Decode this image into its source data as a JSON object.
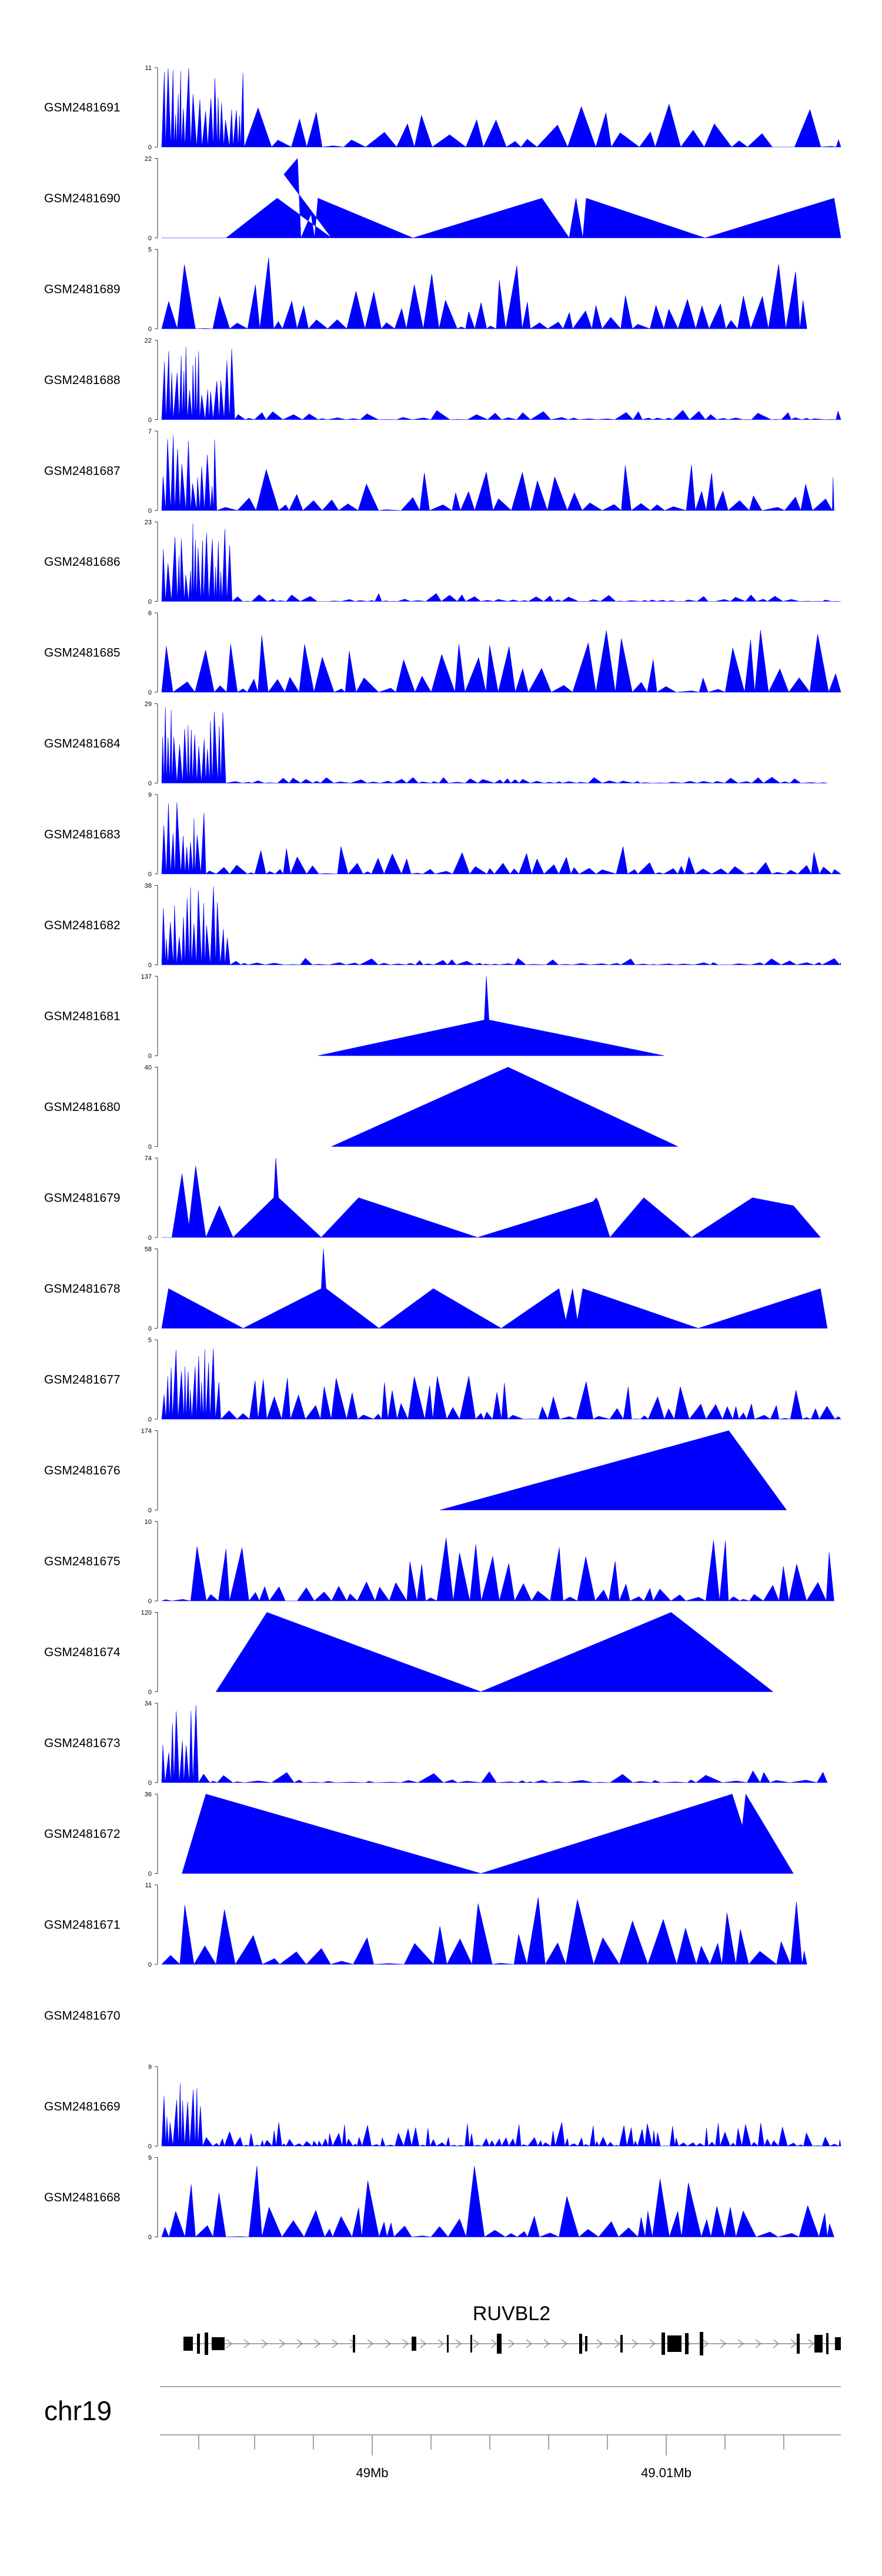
{
  "chart_data": {
    "type": "area",
    "title": "",
    "color": "#0000ff",
    "chromosome": "chr19",
    "gene": {
      "name": "RUVBL2"
    },
    "positions": [
      "49Mb",
      "49.01Mb"
    ],
    "tracks": [
      {
        "name": "GSM2481691",
        "ymax": 11,
        "shape": "noisy",
        "seed": 11,
        "hot_end": 0.12,
        "hot": 1.0,
        "base": 0.22,
        "spike": 0.55,
        "minw": 0.02,
        "maxw": 0.05,
        "xstart": 0,
        "xend": 1
      },
      {
        "name": "GSM2481690",
        "ymax": 22,
        "shape": "poly",
        "pts": [
          [
            0,
            0
          ],
          [
            0.05,
            0
          ],
          [
            0.095,
            0
          ],
          [
            0.17,
            0.5
          ],
          [
            0.25,
            0
          ],
          [
            0.18,
            0.8
          ],
          [
            0.2,
            1.0
          ],
          [
            0.205,
            0
          ],
          [
            0.22,
            0.3
          ],
          [
            0.225,
            0
          ],
          [
            0.23,
            0.5
          ],
          [
            0.37,
            0
          ],
          [
            0.56,
            0.5
          ],
          [
            0.6,
            0
          ],
          [
            0.61,
            0.5
          ],
          [
            0.62,
            0
          ],
          [
            0.625,
            0.5
          ],
          [
            0.8,
            0
          ],
          [
            0.99,
            0.5
          ],
          [
            1,
            0
          ]
        ]
      },
      {
        "name": "GSM2481689",
        "ymax": 5,
        "shape": "noisy",
        "seed": 89,
        "hot_end": 0,
        "hot": 0,
        "base": 0.45,
        "spike": 0.9,
        "minw": 0.012,
        "maxw": 0.03,
        "xstart": 0,
        "xend": 0.95
      },
      {
        "name": "GSM2481688",
        "ymax": 22,
        "shape": "noisy",
        "seed": 88,
        "hot_end": 0.1,
        "hot": 1.0,
        "base": 0.03,
        "spike": 0.12,
        "minw": 0.012,
        "maxw": 0.03,
        "xstart": 0,
        "xend": 1
      },
      {
        "name": "GSM2481687",
        "ymax": 7,
        "shape": "noisy",
        "seed": 87,
        "hot_end": 0.08,
        "hot": 0.95,
        "base": 0.25,
        "spike": 0.6,
        "minw": 0.012,
        "maxw": 0.035,
        "xstart": 0,
        "xend": 0.99
      },
      {
        "name": "GSM2481686",
        "ymax": 23,
        "shape": "noisy",
        "seed": 86,
        "hot_end": 0.1,
        "hot": 1.0,
        "base": 0.03,
        "spike": 0.1,
        "minw": 0.01,
        "maxw": 0.025,
        "xstart": 0,
        "xend": 1
      },
      {
        "name": "GSM2481685",
        "ymax": 6,
        "shape": "noisy",
        "seed": 85,
        "hot_end": 0,
        "hot": 0,
        "base": 0.3,
        "spike": 0.8,
        "minw": 0.012,
        "maxw": 0.035,
        "xstart": 0,
        "xend": 1
      },
      {
        "name": "GSM2481684",
        "ymax": 29,
        "shape": "noisy",
        "seed": 84,
        "hot_end": 0.09,
        "hot": 1.0,
        "base": 0.03,
        "spike": 0.08,
        "minw": 0.01,
        "maxw": 0.025,
        "xstart": 0,
        "xend": 0.98
      },
      {
        "name": "GSM2481683",
        "ymax": 9,
        "shape": "noisy",
        "seed": 83,
        "hot_end": 0.06,
        "hot": 0.9,
        "base": 0.15,
        "spike": 0.35,
        "minw": 0.01,
        "maxw": 0.03,
        "xstart": 0,
        "xend": 1
      },
      {
        "name": "GSM2481682",
        "ymax": 38,
        "shape": "noisy",
        "seed": 82,
        "hot_end": 0.1,
        "hot": 1.0,
        "base": 0.03,
        "spike": 0.09,
        "minw": 0.01,
        "maxw": 0.03,
        "xstart": 0,
        "xend": 1
      },
      {
        "name": "GSM2481681",
        "ymax": 137,
        "shape": "poly",
        "pts": [
          [
            0.23,
            0
          ],
          [
            0.475,
            0.45
          ],
          [
            0.478,
            1.0
          ],
          [
            0.482,
            0.45
          ],
          [
            0.74,
            0
          ]
        ]
      },
      {
        "name": "GSM2481680",
        "ymax": 40,
        "shape": "poly",
        "pts": [
          [
            0.25,
            0
          ],
          [
            0.51,
            1.0
          ],
          [
            0.76,
            0
          ]
        ]
      },
      {
        "name": "GSM2481679",
        "ymax": 74,
        "shape": "poly",
        "pts": [
          [
            0,
            0
          ],
          [
            0.015,
            0
          ],
          [
            0.03,
            0.8
          ],
          [
            0.04,
            0.15
          ],
          [
            0.05,
            0.9
          ],
          [
            0.065,
            0
          ],
          [
            0.085,
            0.4
          ],
          [
            0.105,
            0
          ],
          [
            0.165,
            0.5
          ],
          [
            0.168,
            1.0
          ],
          [
            0.172,
            0.5
          ],
          [
            0.235,
            0
          ],
          [
            0.29,
            0.5
          ],
          [
            0.465,
            0
          ],
          [
            0.635,
            0.45
          ],
          [
            0.64,
            0.5
          ],
          [
            0.643,
            0.45
          ],
          [
            0.66,
            0
          ],
          [
            0.71,
            0.5
          ],
          [
            0.78,
            0
          ],
          [
            0.87,
            0.5
          ],
          [
            0.93,
            0.4
          ],
          [
            0.97,
            0
          ]
        ]
      },
      {
        "name": "GSM2481678",
        "ymax": 58,
        "shape": "poly",
        "pts": [
          [
            0,
            0
          ],
          [
            0.01,
            0.5
          ],
          [
            0.12,
            0
          ],
          [
            0.235,
            0.5
          ],
          [
            0.238,
            1.0
          ],
          [
            0.242,
            0.5
          ],
          [
            0.32,
            0
          ],
          [
            0.4,
            0.5
          ],
          [
            0.5,
            0
          ],
          [
            0.585,
            0.5
          ],
          [
            0.595,
            0.1
          ],
          [
            0.605,
            0.5
          ],
          [
            0.612,
            0.1
          ],
          [
            0.62,
            0.5
          ],
          [
            0.79,
            0
          ],
          [
            0.97,
            0.5
          ],
          [
            0.98,
            0
          ]
        ]
      },
      {
        "name": "GSM2481677",
        "ymax": 5,
        "shape": "noisy",
        "seed": 77,
        "hot_end": 0.08,
        "hot": 0.9,
        "base": 0.2,
        "spike": 0.55,
        "minw": 0.008,
        "maxw": 0.025,
        "xstart": 0,
        "xend": 1
      },
      {
        "name": "GSM2481676",
        "ymax": 174,
        "shape": "poly",
        "pts": [
          [
            0.41,
            0
          ],
          [
            0.835,
            1.0
          ],
          [
            0.92,
            0
          ]
        ]
      },
      {
        "name": "GSM2481675",
        "ymax": 10,
        "shape": "noisy",
        "seed": 75,
        "hot_end": 0,
        "hot": 0,
        "base": 0.25,
        "spike": 0.8,
        "minw": 0.012,
        "maxw": 0.03,
        "xstart": 0,
        "xend": 0.99
      },
      {
        "name": "GSM2481674",
        "ymax": 120,
        "shape": "poly",
        "pts": [
          [
            0.08,
            0
          ],
          [
            0.155,
            1.0
          ],
          [
            0.47,
            0
          ],
          [
            0.75,
            1.0
          ],
          [
            0.9,
            0
          ]
        ]
      },
      {
        "name": "GSM2481673",
        "ymax": 34,
        "shape": "noisy",
        "seed": 73,
        "hot_end": 0.05,
        "hot": 1.0,
        "base": 0.04,
        "spike": 0.15,
        "minw": 0.01,
        "maxw": 0.05,
        "xstart": 0,
        "xend": 0.98
      },
      {
        "name": "GSM2481672",
        "ymax": 36,
        "shape": "poly",
        "pts": [
          [
            0.03,
            0
          ],
          [
            0.065,
            1.0
          ],
          [
            0.47,
            0
          ],
          [
            0.84,
            1.0
          ],
          [
            0.855,
            0.6
          ],
          [
            0.86,
            1.0
          ],
          [
            0.93,
            0
          ]
        ]
      },
      {
        "name": "GSM2481671",
        "ymax": 11,
        "shape": "noisy",
        "seed": 71,
        "hot_end": 0,
        "hot": 0,
        "base": 0.4,
        "spike": 0.85,
        "minw": 0.015,
        "maxw": 0.045,
        "xstart": 0,
        "xend": 0.95
      },
      {
        "name": "GSM2481670",
        "ymax": null,
        "shape": "empty"
      },
      {
        "name": "GSM2481669",
        "ymax": 9,
        "shape": "noisy",
        "seed": 69,
        "hot_end": 0.06,
        "hot": 0.9,
        "base": 0.12,
        "spike": 0.3,
        "minw": 0.005,
        "maxw": 0.015,
        "xstart": 0,
        "xend": 1
      },
      {
        "name": "GSM2481668",
        "ymax": 9,
        "shape": "noisy",
        "seed": 68,
        "hot_end": 0,
        "hot": 0,
        "base": 0.4,
        "spike": 0.95,
        "minw": 0.01,
        "maxw": 0.035,
        "xstart": 0,
        "xend": 0.99
      }
    ]
  }
}
